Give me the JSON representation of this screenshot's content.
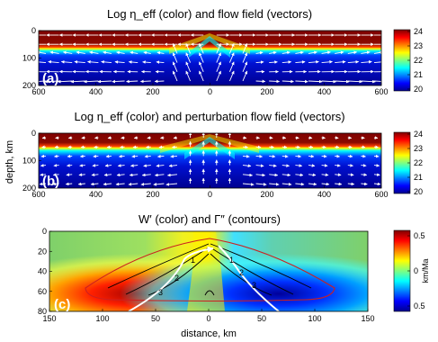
{
  "panels": [
    {
      "id": "a",
      "tag": "(a)",
      "title": "Log η_eff (color) and flow field (vectors)",
      "x_ticks": [
        "600",
        "400",
        "200",
        "0",
        "200",
        "400",
        "600"
      ],
      "y_ticks": [
        "0",
        "100",
        "200"
      ],
      "colorbar_ticks": [
        "24",
        "23",
        "22",
        "21",
        "20"
      ]
    },
    {
      "id": "b",
      "tag": "(b)",
      "title": "Log η_eff (color) and perturbation flow field (vectors)",
      "x_ticks": [
        "600",
        "400",
        "200",
        "0",
        "200",
        "400",
        "600"
      ],
      "y_ticks": [
        "0",
        "100",
        "200"
      ],
      "ylabel": "depth, km",
      "colorbar_ticks": [
        "24",
        "23",
        "22",
        "21",
        "20"
      ]
    },
    {
      "id": "c",
      "tag": "(c)",
      "title": "W′ (color) and Γ″ (contours)",
      "x_ticks": [
        "150",
        "100",
        "50",
        "0",
        "50",
        "100",
        "150"
      ],
      "y_ticks": [
        "0",
        "20",
        "40",
        "60",
        "80"
      ],
      "xlabel": "distance, km",
      "colorbar_ticks": [
        "0.5",
        "0",
        "0.5"
      ],
      "colorbar_label": "km/Ma",
      "contour_labels": [
        "1",
        "1",
        "2",
        "2",
        "3",
        "3"
      ]
    }
  ],
  "chart_data": [
    {
      "type": "heatmap",
      "panel": "a",
      "title": "Log η_eff (color) and flow field (vectors)",
      "x_ticks": [
        600,
        400,
        200,
        0,
        200,
        400,
        600
      ],
      "y_ticks": [
        0,
        100,
        200
      ],
      "xlim": [
        -600,
        600
      ],
      "ylim": [
        200,
        0
      ],
      "color_range": [
        19.5,
        24
      ],
      "colormap": "jet",
      "colorbar_ticks": [
        24,
        23,
        22,
        21,
        20
      ],
      "high_viscosity_lid_depth_km": [
        30,
        70
      ],
      "lid_thinning_at_x_km": 0
    },
    {
      "type": "heatmap",
      "panel": "b",
      "title": "Log η_eff (color) and perturbation flow field (vectors)",
      "ylabel": "depth, km",
      "x_ticks": [
        600,
        400,
        200,
        0,
        200,
        400,
        600
      ],
      "y_ticks": [
        0,
        100,
        200
      ],
      "xlim": [
        -600,
        600
      ],
      "ylim": [
        200,
        0
      ],
      "color_range": [
        19.5,
        24
      ],
      "colormap": "jet",
      "colorbar_ticks": [
        24,
        23,
        22,
        21,
        20
      ]
    },
    {
      "type": "heatmap",
      "panel": "c",
      "title": "W′ (color) and Γ″ (contours)",
      "xlabel": "distance, km",
      "x_ticks": [
        150,
        100,
        50,
        0,
        50,
        100,
        150
      ],
      "y_ticks": [
        0,
        20,
        40,
        60,
        80
      ],
      "xlim": [
        -150,
        150
      ],
      "ylim": [
        80,
        0
      ],
      "color_range": [
        -0.6,
        0.6
      ],
      "colormap": "jet",
      "colorbar_ticks": [
        0.5,
        0,
        -0.5
      ],
      "colorbar_label": "km/Ma",
      "contours": [
        {
          "label": "1",
          "level": 1
        },
        {
          "label": "2",
          "level": 2
        },
        {
          "label": "3",
          "level": 3
        }
      ],
      "outer_contour_color": "#cc2020",
      "flowline_color": "#ffffff"
    }
  ],
  "colors": {
    "jet_dark_blue": "#00008f",
    "jet_blue": "#0000ff",
    "jet_cyan": "#00ffff",
    "jet_yellow": "#ffff00",
    "jet_red": "#ff0000",
    "jet_dark_red": "#800000",
    "contour_black": "#000000",
    "contour_red": "#cc2020",
    "vector_white": "#ffffff"
  }
}
